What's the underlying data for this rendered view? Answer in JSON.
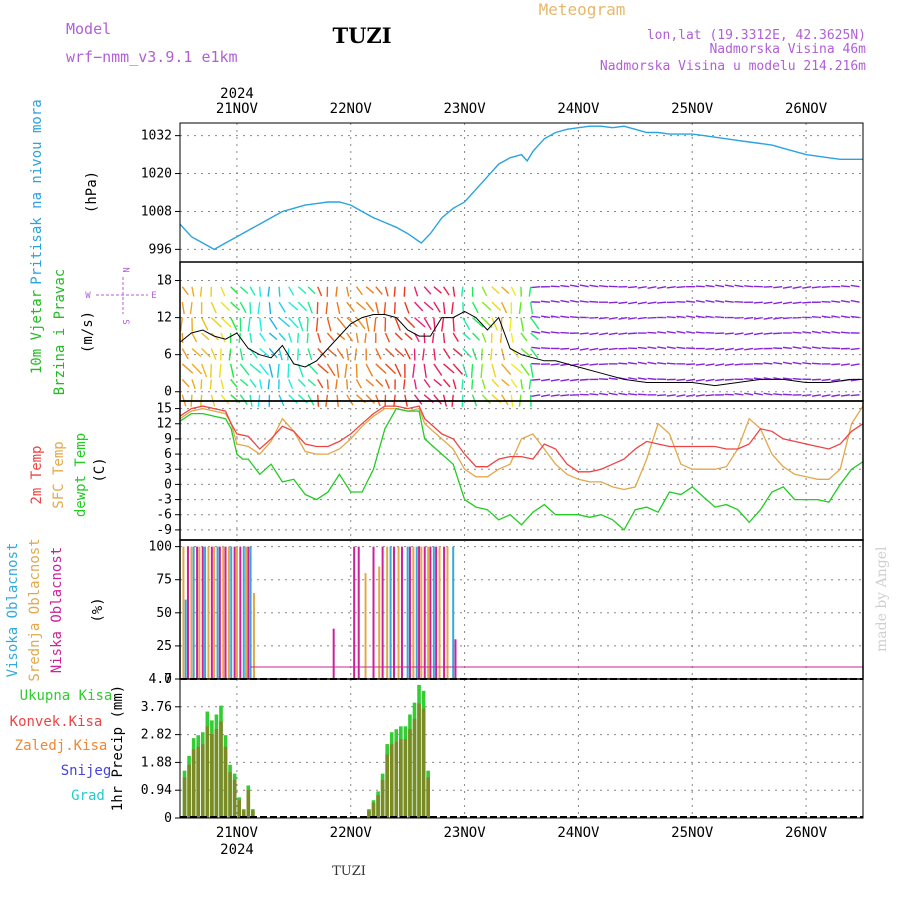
{
  "header": {
    "model_label": "Model",
    "model_name": "wrf−nmm_v3.9.1 e1km",
    "station": "TUZI",
    "meteogram": "Meteogram",
    "lonlat": "lon,lat (19.3312E, 42.3625N)",
    "altitude": "Nadmorska Visina 46m",
    "model_altitude": "Nadmorska Visina u modelu 214.216m",
    "watermark": "made by Angel",
    "footer_station": "TUZI"
  },
  "colors": {
    "pressure": "#2aa3e0",
    "wind_label": "#22bb22",
    "temp2m": "#ee4444",
    "sfc": "#e2a84a",
    "dewpt": "#22cc22",
    "high_cloud": "#33aadd",
    "mid_cloud": "#e2a84a",
    "low_cloud": "#cc2299",
    "rain_total": "#33cc33",
    "rain_conv": "#ee4444",
    "rain_frozen": "#ee8833",
    "snow": "#4444dd",
    "hail": "#22cccc",
    "purple": "#b05fd8",
    "title_orange": "#e6b86a"
  },
  "chart_data": [
    {
      "type": "line",
      "id": "pressure",
      "ylabel_lines": [
        "Pritisak na nivou mora",
        "(hPa)"
      ],
      "ylim": [
        992,
        1036
      ],
      "yticks": [
        996,
        1008,
        1020,
        1032
      ],
      "grid": true,
      "top_year": "2024",
      "top_date_labels": [
        "21NOV",
        "22NOV",
        "23NOV",
        "24NOV",
        "25NOV",
        "26NOV"
      ],
      "series": [
        {
          "x": [
            0.5,
            0.6,
            0.7,
            0.8,
            0.9,
            1.0,
            1.1,
            1.2,
            1.3,
            1.4,
            1.5,
            1.6,
            1.7,
            1.8,
            1.9,
            2.0,
            2.1,
            2.2,
            2.3,
            2.4,
            2.5,
            2.6,
            2.62,
            2.7,
            2.8,
            2.9,
            3.0,
            3.1,
            3.2,
            3.3,
            3.4,
            3.5,
            3.55,
            3.6,
            3.7,
            3.8,
            3.9,
            4.0,
            4.1,
            4.2,
            4.3,
            4.4,
            4.5,
            4.6,
            4.7,
            4.8,
            4.9,
            5.0,
            5.1,
            5.2,
            5.3,
            5.4,
            5.5,
            5.6,
            5.7,
            5.8,
            5.9,
            6.0,
            6.1,
            6.2,
            6.3,
            6.4,
            6.5
          ],
          "y": [
            1004,
            1000,
            998,
            996,
            998,
            1000,
            1002,
            1004,
            1006,
            1008,
            1009,
            1010,
            1010.5,
            1011,
            1011,
            1010,
            1008,
            1006,
            1004.5,
            1003,
            1001,
            998.5,
            998,
            1001,
            1006,
            1009,
            1011,
            1015,
            1019,
            1023,
            1025,
            1026,
            1024,
            1027,
            1031,
            1033,
            1034,
            1034.5,
            1035,
            1035,
            1034.5,
            1035,
            1034,
            1033,
            1033,
            1032.5,
            1032.5,
            1032.5,
            1032,
            1031.5,
            1031,
            1030.5,
            1030,
            1029.5,
            1029,
            1028,
            1027,
            1026,
            1025.5,
            1025,
            1024.5,
            1024.5,
            1024.5
          ]
        }
      ]
    },
    {
      "type": "line",
      "id": "wind",
      "ylabel_lines": [
        "10m Vjetar",
        "Brzina i Pravac",
        "(m/s)"
      ],
      "compass": {
        "n": "N",
        "s": "S",
        "w": "W",
        "e": "E"
      },
      "ylim": [
        -1.5,
        21
      ],
      "yticks": [
        0,
        6,
        12,
        18
      ],
      "grid": true,
      "series": [
        {
          "name": "speed",
          "x": [
            0.5,
            0.6,
            0.7,
            0.8,
            0.9,
            1.0,
            1.1,
            1.2,
            1.3,
            1.4,
            1.5,
            1.6,
            1.7,
            1.8,
            1.9,
            2.0,
            2.1,
            2.2,
            2.3,
            2.4,
            2.5,
            2.6,
            2.7,
            2.8,
            2.9,
            3.0,
            3.1,
            3.2,
            3.3,
            3.4,
            3.5,
            3.6,
            3.7,
            3.8,
            3.9,
            4.0,
            4.2,
            4.4,
            4.6,
            4.8,
            5.0,
            5.2,
            5.4,
            5.6,
            5.8,
            6.0,
            6.2,
            6.4,
            6.5
          ],
          "y": [
            8,
            9.5,
            10,
            9,
            8.5,
            9.5,
            7,
            6,
            5.5,
            7.5,
            4.5,
            4,
            5,
            7,
            9,
            11,
            12,
            12.5,
            12.5,
            12,
            10,
            9,
            9,
            12,
            12,
            13,
            12,
            10,
            12,
            7,
            6,
            5.5,
            5,
            5,
            4.5,
            4,
            3,
            2,
            1.5,
            1.5,
            1.5,
            1,
            1.5,
            2,
            2,
            1.5,
            1.5,
            2,
            2
          ]
        }
      ]
    },
    {
      "type": "line",
      "id": "temperature",
      "ylabel_lines": [
        "2m Temp",
        "SFC Temp",
        "dewpt Temp",
        "(C)"
      ],
      "ylim": [
        -11,
        16.5
      ],
      "yticks": [
        -9,
        -6,
        -3,
        0,
        3,
        6,
        9,
        12,
        15
      ],
      "grid": true,
      "series": [
        {
          "name": "2m Temp",
          "x": [
            0.5,
            0.6,
            0.7,
            0.8,
            0.9,
            0.95,
            1.0,
            1.1,
            1.2,
            1.3,
            1.4,
            1.5,
            1.6,
            1.7,
            1.8,
            1.9,
            2.0,
            2.1,
            2.2,
            2.3,
            2.4,
            2.5,
            2.6,
            2.65,
            2.7,
            2.8,
            2.9,
            3.0,
            3.1,
            3.2,
            3.3,
            3.4,
            3.5,
            3.6,
            3.7,
            3.8,
            3.9,
            4.0,
            4.1,
            4.2,
            4.3,
            4.4,
            4.5,
            4.6,
            4.7,
            4.8,
            4.9,
            5.0,
            5.1,
            5.2,
            5.3,
            5.4,
            5.5,
            5.6,
            5.7,
            5.8,
            5.9,
            6.0,
            6.1,
            6.2,
            6.3,
            6.4,
            6.5
          ],
          "y": [
            13.5,
            15,
            15.5,
            15,
            14.5,
            12,
            10,
            9.5,
            7,
            9,
            11.5,
            10.5,
            8,
            7.5,
            7.5,
            8.5,
            10,
            12,
            14,
            15.5,
            15.5,
            15,
            15.5,
            13,
            12,
            10,
            9,
            6,
            3.5,
            3.5,
            5,
            5.5,
            5.5,
            5,
            8,
            7,
            4,
            2.5,
            2.5,
            3,
            4,
            5,
            7,
            8.5,
            8,
            7.5,
            7.5,
            7.5,
            7.5,
            7.5,
            7,
            7,
            8,
            11,
            10.5,
            9,
            8.5,
            8,
            7.5,
            7,
            8,
            10.5,
            12
          ]
        },
        {
          "name": "SFC Temp",
          "x": [
            0.5,
            0.6,
            0.7,
            0.8,
            0.9,
            0.95,
            1.0,
            1.1,
            1.2,
            1.3,
            1.4,
            1.5,
            1.6,
            1.7,
            1.8,
            1.9,
            2.0,
            2.1,
            2.2,
            2.3,
            2.4,
            2.5,
            2.6,
            2.65,
            2.7,
            2.8,
            2.9,
            3.0,
            3.1,
            3.2,
            3.3,
            3.4,
            3.5,
            3.6,
            3.7,
            3.8,
            3.9,
            4.0,
            4.1,
            4.2,
            4.3,
            4.4,
            4.5,
            4.6,
            4.7,
            4.8,
            4.9,
            5.0,
            5.1,
            5.2,
            5.3,
            5.4,
            5.5,
            5.6,
            5.7,
            5.8,
            5.9,
            6.0,
            6.1,
            6.2,
            6.3,
            6.4,
            6.5
          ],
          "y": [
            13,
            14.5,
            15,
            14.5,
            14,
            12,
            8,
            7.5,
            6,
            8.5,
            13,
            10.5,
            6.5,
            6,
            6,
            7,
            9,
            11.5,
            13.5,
            15,
            15,
            14.5,
            15,
            12,
            11,
            9,
            7,
            3,
            1.5,
            1.5,
            3,
            4,
            9,
            10,
            7,
            4,
            2,
            1,
            0.5,
            0.5,
            -0.5,
            -1,
            -0.5,
            5,
            12,
            10,
            4,
            3,
            3,
            3,
            3.5,
            7,
            13,
            11,
            6,
            3.5,
            2,
            1.5,
            1,
            1,
            3,
            12,
            15.5
          ]
        },
        {
          "name": "dewpt Temp",
          "x": [
            0.5,
            0.6,
            0.7,
            0.8,
            0.9,
            0.95,
            1.0,
            1.05,
            1.1,
            1.2,
            1.3,
            1.4,
            1.5,
            1.6,
            1.7,
            1.8,
            1.9,
            2.0,
            2.1,
            2.2,
            2.3,
            2.4,
            2.5,
            2.6,
            2.65,
            2.7,
            2.8,
            2.9,
            3.0,
            3.1,
            3.2,
            3.3,
            3.4,
            3.5,
            3.6,
            3.7,
            3.8,
            3.9,
            4.0,
            4.1,
            4.2,
            4.3,
            4.4,
            4.5,
            4.6,
            4.7,
            4.8,
            4.9,
            5.0,
            5.1,
            5.2,
            5.3,
            5.4,
            5.5,
            5.6,
            5.7,
            5.8,
            5.9,
            6.0,
            6.1,
            6.2,
            6.3,
            6.4,
            6.5
          ],
          "y": [
            12.5,
            14,
            14,
            13.5,
            13,
            11,
            6,
            5,
            5,
            2,
            4,
            0.5,
            1,
            -2,
            -3,
            -1.5,
            2,
            -1.5,
            -1.5,
            3,
            11,
            15,
            14.5,
            14.5,
            9,
            8,
            6,
            4,
            -3,
            -4.5,
            -5,
            -7,
            -6,
            -8,
            -5.5,
            -4,
            -6,
            -6,
            -6,
            -6.5,
            -6,
            -7,
            -9,
            -5,
            -4.5,
            -5.5,
            -1.5,
            -2,
            -0.5,
            -2.5,
            -4.5,
            -4,
            -5,
            -7.5,
            -5,
            -1.5,
            -0.5,
            -3,
            -3,
            -3,
            -3.5,
            0,
            3,
            4.5
          ]
        }
      ]
    },
    {
      "type": "bar",
      "id": "clouds",
      "ylabel_lines": [
        "Visoka Oblacnost",
        "Srednja Oblacnost",
        "Niska Oblacnost",
        "(%)"
      ],
      "ylim": [
        0,
        105
      ],
      "yticks": [
        0,
        25,
        50,
        75,
        100
      ],
      "grid": true,
      "series": [
        {
          "name": "Visoka Oblacnost",
          "x": [
            0.55,
            0.62,
            0.72,
            0.83,
            0.95,
            1.06,
            1.12,
            2.35,
            2.5,
            2.58,
            2.73,
            2.9
          ],
          "values": [
            60,
            100,
            100,
            100,
            100,
            100,
            100,
            100,
            100,
            100,
            100,
            100
          ]
        },
        {
          "name": "Srednja Oblacnost",
          "x": [
            0.53,
            0.6,
            0.67,
            0.75,
            0.8,
            0.88,
            0.93,
            1.0,
            1.08,
            1.15,
            2.13,
            2.25,
            2.32,
            2.42,
            2.55,
            2.62,
            2.68,
            2.78,
            2.85
          ],
          "values": [
            100,
            100,
            100,
            100,
            100,
            100,
            100,
            100,
            100,
            65,
            80,
            85,
            100,
            100,
            100,
            100,
            100,
            100,
            100
          ]
        },
        {
          "name": "Niska Oblacnost",
          "x": [
            0.57,
            0.65,
            0.7,
            0.78,
            0.85,
            0.9,
            0.98,
            1.03,
            1.1,
            1.85,
            2.03,
            2.07,
            2.2,
            2.28,
            2.38,
            2.45,
            2.52,
            2.6,
            2.65,
            2.7,
            2.75,
            2.82,
            2.92
          ],
          "values": [
            100,
            100,
            100,
            100,
            100,
            100,
            100,
            100,
            100,
            38,
            100,
            100,
            100,
            100,
            100,
            100,
            100,
            100,
            100,
            100,
            100,
            100,
            30
          ]
        }
      ]
    },
    {
      "type": "bar",
      "id": "precip",
      "ylabel_lines": [
        "1hr Precip (mm)"
      ],
      "legend": [
        "Ukupna Kisa",
        "Konvek.Kisa",
        "Zaledj.Kisa",
        "Snijeg",
        "Grad"
      ],
      "ylim": [
        0,
        4.7
      ],
      "yticks": [
        "0",
        "0.94",
        "1.88",
        "2.82",
        "3.76",
        "4.7"
      ],
      "grid": true,
      "bottom_date_labels": [
        "21NOV",
        "22NOV",
        "23NOV",
        "24NOV",
        "25NOV",
        "26NOV"
      ],
      "bottom_year": "2024",
      "series": [
        {
          "name": "Ukupna Kisa",
          "x": [
            0.54,
            0.58,
            0.62,
            0.66,
            0.7,
            0.74,
            0.78,
            0.82,
            0.86,
            0.9,
            0.94,
            0.98,
            1.02,
            1.06,
            1.1,
            1.14,
            2.16,
            2.2,
            2.24,
            2.28,
            2.32,
            2.36,
            2.4,
            2.44,
            2.48,
            2.52,
            2.56,
            2.6,
            2.64,
            2.68
          ],
          "values": [
            1.6,
            2.1,
            2.7,
            2.8,
            2.9,
            3.6,
            3.3,
            3.5,
            3.8,
            2.8,
            1.8,
            1.5,
            0.7,
            0.3,
            1.1,
            0.3,
            0.3,
            0.6,
            0.9,
            1.5,
            2.5,
            2.9,
            3.0,
            3.1,
            3.1,
            3.5,
            3.9,
            4.5,
            4.3,
            1.6
          ]
        }
      ]
    }
  ]
}
